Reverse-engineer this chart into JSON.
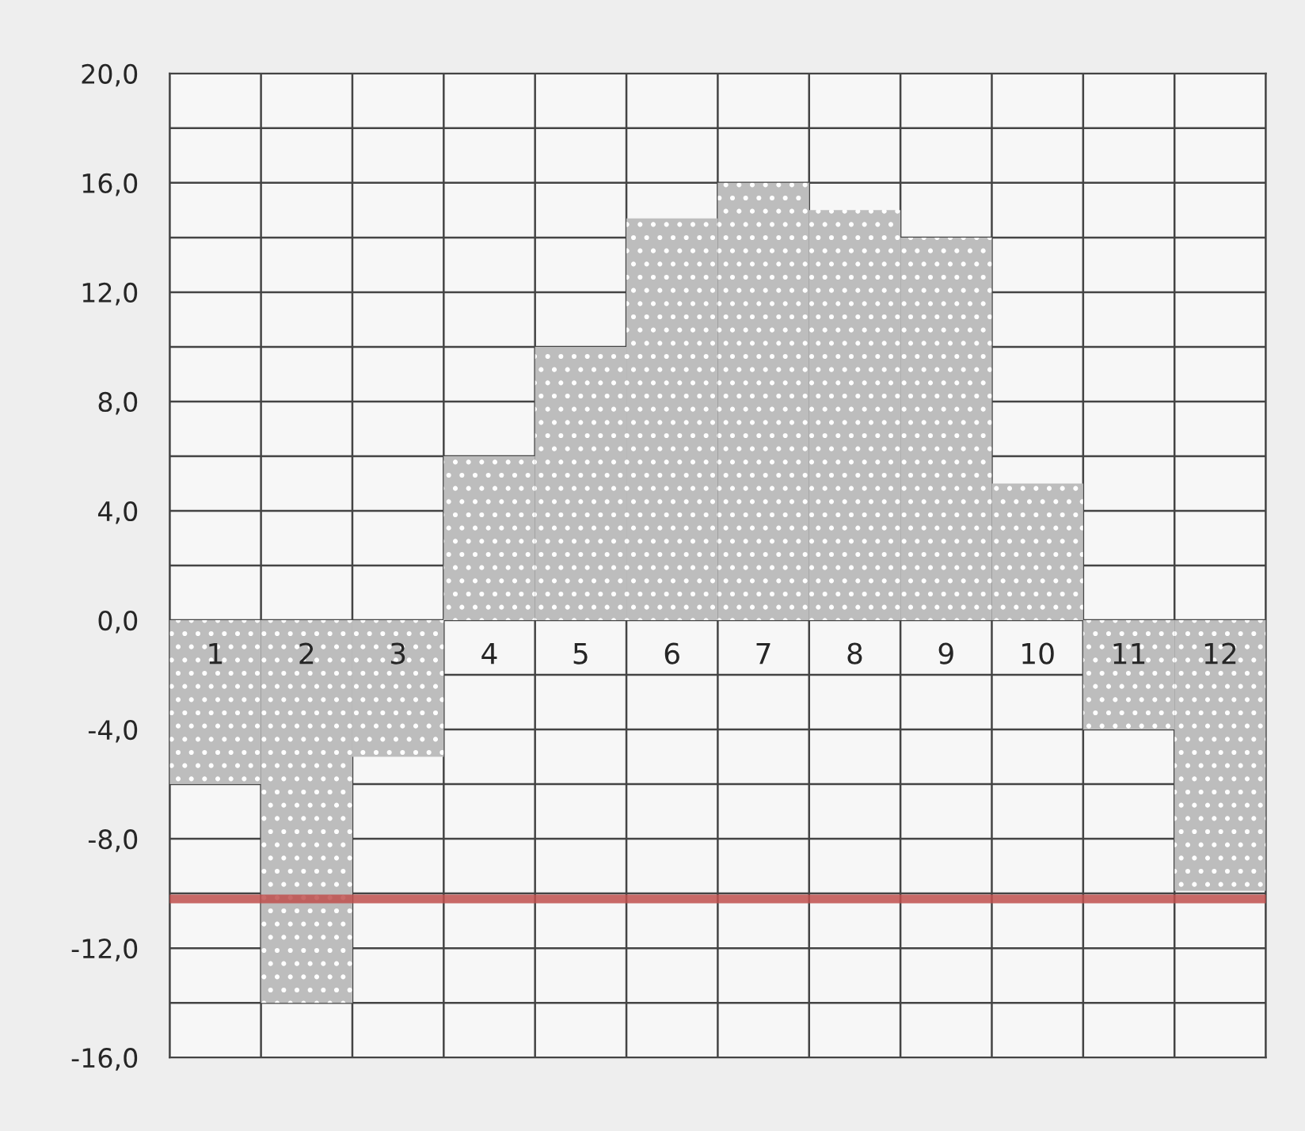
{
  "chart_data": {
    "type": "bar",
    "categories": [
      "1",
      "2",
      "3",
      "4",
      "5",
      "6",
      "7",
      "8",
      "9",
      "10",
      "11",
      "12"
    ],
    "values": [
      -6,
      -14,
      -5,
      6,
      10,
      14.7,
      16,
      15,
      14,
      5,
      -4,
      -9.9
    ],
    "color": "#bdbdbd",
    "ylim": [
      -16,
      20
    ],
    "yticks": [
      {
        "value": -16,
        "label": "-16,0"
      },
      {
        "value": -14,
        "label": null
      },
      {
        "value": -12,
        "label": "-12,0"
      },
      {
        "value": -10,
        "label": null
      },
      {
        "value": -8,
        "label": "-8,0"
      },
      {
        "value": -6,
        "label": null
      },
      {
        "value": -4,
        "label": "-4,0"
      },
      {
        "value": -2,
        "label": null
      },
      {
        "value": 0,
        "label": "0,0"
      },
      {
        "value": 2,
        "label": null
      },
      {
        "value": 4,
        "label": "4,0"
      },
      {
        "value": 6,
        "label": null
      },
      {
        "value": 8,
        "label": "8,0"
      },
      {
        "value": 10,
        "label": null
      },
      {
        "value": 12,
        "label": "12,0"
      },
      {
        "value": 14,
        "label": null
      },
      {
        "value": 16,
        "label": "16,0"
      },
      {
        "value": 18,
        "label": null
      },
      {
        "value": 20,
        "label": "20,0"
      }
    ],
    "ref_lines": [
      {
        "axis": "y",
        "value": -10.2,
        "label": null,
        "color": "#c0504d"
      }
    ],
    "grid": true
  }
}
